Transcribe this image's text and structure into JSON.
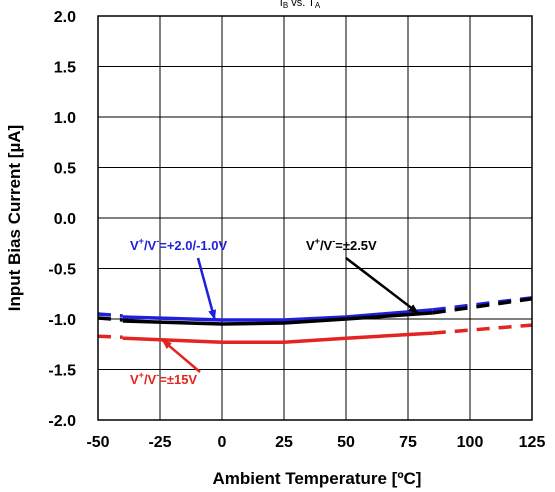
{
  "chart_data": {
    "type": "line",
    "title": "",
    "condition_text": "I",
    "condition_subscript": "B",
    "condition_tail": " vs. T",
    "condition_tail_subscript": "A",
    "xlabel": "Ambient Temperature [ºC]",
    "ylabel": "Input Bias Current [µA]",
    "xlim": [
      -50,
      125
    ],
    "ylim": [
      -2.0,
      2.0
    ],
    "xticks": [
      -50,
      -25,
      0,
      25,
      50,
      75,
      100,
      125
    ],
    "yticks": [
      2.0,
      1.5,
      1.0,
      0.5,
      0.0,
      -0.5,
      -1.0,
      -1.5,
      -2.0
    ],
    "x_tick_labels": [
      "-50",
      "-25",
      "0",
      "25",
      "50",
      "75",
      "100",
      "125"
    ],
    "y_tick_labels": [
      "2.0",
      "1.5",
      "1.0",
      "0.5",
      "0.0",
      "-0.5",
      "-1.0",
      "-1.5",
      "-2.0"
    ],
    "grid": true,
    "series": [
      {
        "name": "V+/V-=+2.0/-1.0V",
        "label_parts": [
          "V",
          "+",
          "/V",
          "-",
          "=+2.0/-1.0V"
        ],
        "color": "#1f1fdc",
        "solid": {
          "x": [
            -40,
            0,
            25,
            50,
            85
          ],
          "y": [
            -0.98,
            -1.01,
            -1.01,
            -0.98,
            -0.91
          ]
        },
        "dashed": [
          {
            "x": [
              -50,
              -40
            ],
            "y": [
              -0.95,
              -0.97
            ]
          },
          {
            "x": [
              85,
              125
            ],
            "y": [
              -0.91,
              -0.79
            ]
          }
        ],
        "arrow_to": {
          "x": -3,
          "y": -1.0
        }
      },
      {
        "name": "V+/V-=±2.5V",
        "label_parts": [
          "V",
          "+",
          "/V",
          "-",
          "=±2.5V"
        ],
        "color": "#000000",
        "solid": {
          "x": [
            -40,
            0,
            25,
            50,
            85
          ],
          "y": [
            -1.02,
            -1.05,
            -1.04,
            -1.0,
            -0.94
          ]
        },
        "dashed": [
          {
            "x": [
              -50,
              -40
            ],
            "y": [
              -0.99,
              -1.01
            ]
          },
          {
            "x": [
              85,
              125
            ],
            "y": [
              -0.94,
              -0.8
            ]
          }
        ],
        "arrow_to": {
          "x": 79,
          "y": -0.94
        }
      },
      {
        "name": "V+/V-=±15V",
        "label_parts": [
          "V",
          "+",
          "/V",
          "-",
          "=±15V"
        ],
        "color": "#e32420",
        "solid": {
          "x": [
            -40,
            0,
            25,
            50,
            85
          ],
          "y": [
            -1.19,
            -1.23,
            -1.23,
            -1.19,
            -1.14
          ]
        },
        "dashed": [
          {
            "x": [
              -50,
              -40
            ],
            "y": [
              -1.17,
              -1.18
            ]
          },
          {
            "x": [
              85,
              125
            ],
            "y": [
              -1.14,
              -1.06
            ]
          }
        ],
        "arrow_to": {
          "x": -24,
          "y": -1.21
        }
      }
    ]
  }
}
